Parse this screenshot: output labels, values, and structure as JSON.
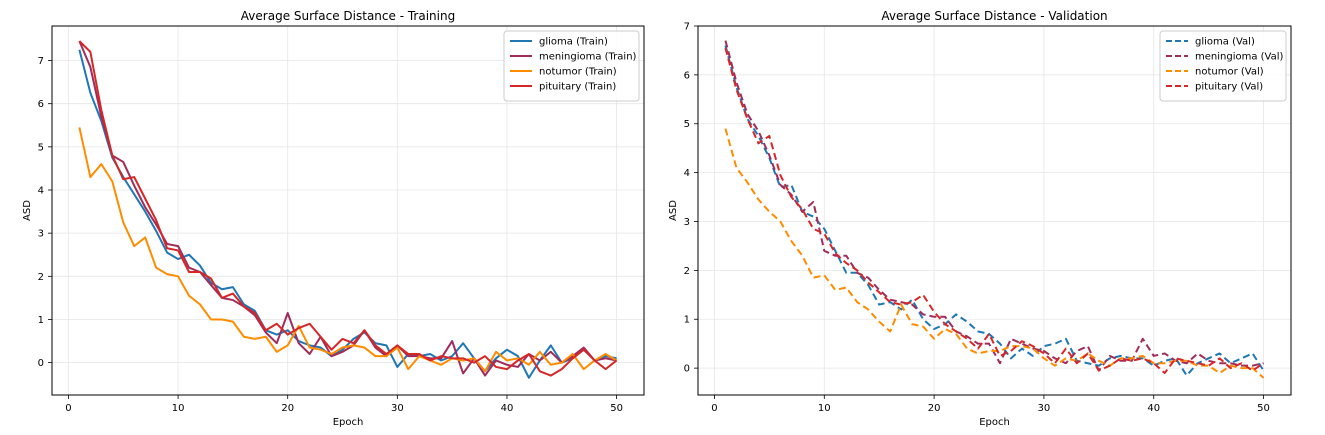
{
  "chart_data": [
    {
      "type": "line",
      "title": "Average Surface Distance - Training",
      "xlabel": "Epoch",
      "ylabel": "ASD",
      "xlim": [
        -1.5,
        52.5
      ],
      "ylim": [
        -0.75,
        7.8
      ],
      "xticks": [
        0,
        10,
        20,
        30,
        40,
        50
      ],
      "yticks": [
        0,
        1,
        2,
        3,
        4,
        5,
        6,
        7
      ],
      "grid": true,
      "legend_position": "top-right",
      "line_style": "solid",
      "x": [
        1,
        2,
        3,
        4,
        5,
        6,
        7,
        8,
        9,
        10,
        11,
        12,
        13,
        14,
        15,
        16,
        17,
        18,
        19,
        20,
        21,
        22,
        23,
        24,
        25,
        26,
        27,
        28,
        29,
        30,
        31,
        32,
        33,
        34,
        35,
        36,
        37,
        38,
        39,
        40,
        41,
        42,
        43,
        44,
        45,
        46,
        47,
        48,
        49,
        50
      ],
      "series": [
        {
          "name": "glioma (Train)",
          "color": "#1f77b4",
          "values": [
            7.25,
            6.25,
            5.6,
            4.75,
            4.3,
            3.9,
            3.5,
            3.05,
            2.55,
            2.4,
            2.5,
            2.25,
            1.85,
            1.7,
            1.75,
            1.35,
            1.2,
            0.75,
            0.65,
            0.75,
            0.5,
            0.4,
            0.35,
            0.15,
            0.3,
            0.55,
            0.7,
            0.45,
            0.4,
            -0.1,
            0.2,
            0.15,
            0.2,
            0.05,
            0.15,
            0.45,
            0.1,
            -0.2,
            0.1,
            0.3,
            0.15,
            -0.35,
            0.05,
            0.4,
            0.0,
            0.1,
            0.3,
            0.05,
            0.15,
            0.1
          ]
        },
        {
          "name": "meningioma (Train)",
          "color": "#a02c5a",
          "values": [
            7.45,
            6.85,
            5.7,
            4.8,
            4.65,
            4.1,
            3.6,
            3.2,
            2.75,
            2.7,
            2.2,
            2.1,
            1.8,
            1.5,
            1.45,
            1.3,
            1.1,
            0.7,
            0.45,
            1.15,
            0.45,
            0.2,
            0.6,
            0.15,
            0.25,
            0.4,
            0.75,
            0.35,
            0.15,
            0.4,
            0.15,
            0.15,
            0.1,
            0.1,
            0.5,
            -0.25,
            0.1,
            -0.3,
            0.05,
            -0.05,
            -0.1,
            0.2,
            0.05,
            0.25,
            0.0,
            0.15,
            0.35,
            0.05,
            0.1,
            0.05
          ]
        },
        {
          "name": "notumor (Train)",
          "color": "#ff8c00",
          "values": [
            5.45,
            4.3,
            4.6,
            4.2,
            3.25,
            2.7,
            2.9,
            2.2,
            2.05,
            2.0,
            1.55,
            1.35,
            1.0,
            1.0,
            0.95,
            0.6,
            0.55,
            0.6,
            0.25,
            0.4,
            0.85,
            0.35,
            0.3,
            0.2,
            0.35,
            0.4,
            0.35,
            0.15,
            0.15,
            0.35,
            -0.15,
            0.15,
            0.05,
            -0.05,
            0.1,
            0.05,
            0.1,
            -0.2,
            0.25,
            0.05,
            0.1,
            -0.05,
            0.25,
            -0.05,
            0.0,
            0.2,
            -0.15,
            0.05,
            0.2,
            0.05
          ]
        },
        {
          "name": "pituitary (Train)",
          "color": "#d62728",
          "values": [
            7.45,
            7.2,
            5.85,
            4.8,
            4.25,
            4.3,
            3.8,
            3.3,
            2.65,
            2.6,
            2.1,
            2.1,
            1.95,
            1.5,
            1.6,
            1.3,
            1.15,
            0.75,
            0.9,
            0.65,
            0.8,
            0.9,
            0.6,
            0.3,
            0.55,
            0.45,
            0.75,
            0.4,
            0.2,
            0.4,
            0.2,
            0.2,
            0.05,
            0.15,
            0.1,
            0.1,
            0.0,
            0.15,
            -0.1,
            -0.15,
            0.05,
            0.2,
            -0.2,
            -0.3,
            -0.15,
            0.1,
            0.3,
            0.05,
            -0.15,
            0.05
          ]
        }
      ]
    },
    {
      "type": "line",
      "title": "Average Surface Distance - Validation",
      "xlabel": "Epoch",
      "ylabel": "ASD",
      "xlim": [
        -1.5,
        52.5
      ],
      "ylim": [
        -0.55,
        7.0
      ],
      "xticks": [
        0,
        10,
        20,
        30,
        40,
        50
      ],
      "yticks": [
        0,
        1,
        2,
        3,
        4,
        5,
        6,
        7
      ],
      "grid": true,
      "legend_position": "top-right",
      "line_style": "dashed",
      "x": [
        1,
        2,
        3,
        4,
        5,
        6,
        7,
        8,
        9,
        10,
        11,
        12,
        13,
        14,
        15,
        16,
        17,
        18,
        19,
        20,
        21,
        22,
        23,
        24,
        25,
        26,
        27,
        28,
        29,
        30,
        31,
        32,
        33,
        34,
        35,
        36,
        37,
        38,
        39,
        40,
        41,
        42,
        43,
        44,
        45,
        46,
        47,
        48,
        49,
        50
      ],
      "series": [
        {
          "name": "glioma (Val)",
          "color": "#1f77b4",
          "values": [
            6.6,
            5.75,
            5.1,
            4.75,
            4.3,
            3.7,
            3.75,
            3.2,
            3.1,
            2.85,
            2.4,
            1.95,
            1.95,
            1.7,
            1.3,
            1.35,
            1.2,
            1.4,
            1.0,
            0.8,
            0.9,
            1.1,
            0.95,
            0.75,
            0.7,
            0.5,
            0.2,
            0.4,
            0.25,
            0.45,
            0.5,
            0.6,
            0.15,
            0.1,
            0.05,
            0.2,
            0.25,
            0.2,
            0.2,
            0.05,
            0.15,
            0.2,
            -0.15,
            0.1,
            0.2,
            0.3,
            0.1,
            0.2,
            0.3,
            -0.05
          ]
        },
        {
          "name": "meningioma (Val)",
          "color": "#a02c5a",
          "values": [
            6.7,
            5.85,
            5.2,
            4.85,
            4.35,
            3.75,
            3.55,
            3.2,
            3.4,
            2.4,
            2.3,
            2.3,
            1.95,
            1.85,
            1.6,
            1.4,
            1.35,
            1.3,
            1.1,
            1.05,
            1.05,
            0.75,
            0.65,
            0.5,
            0.5,
            0.1,
            0.6,
            0.5,
            0.4,
            0.35,
            0.2,
            0.1,
            0.35,
            0.45,
            -0.05,
            0.25,
            0.15,
            0.15,
            0.6,
            0.25,
            0.3,
            0.15,
            0.1,
            0.3,
            0.15,
            0.1,
            0.1,
            0.05,
            0.05,
            0.1
          ]
        },
        {
          "name": "notumor (Val)",
          "color": "#ff8c00",
          "values": [
            4.9,
            4.1,
            3.8,
            3.45,
            3.2,
            3.0,
            2.6,
            2.3,
            1.85,
            1.9,
            1.6,
            1.65,
            1.35,
            1.2,
            0.95,
            0.75,
            1.3,
            0.9,
            0.85,
            0.6,
            0.8,
            0.7,
            0.4,
            0.3,
            0.35,
            0.35,
            0.45,
            0.45,
            0.4,
            0.2,
            0.05,
            0.2,
            0.15,
            0.3,
            0.15,
            0.05,
            0.2,
            0.2,
            0.25,
            0.1,
            0.1,
            0.15,
            0.15,
            0.05,
            0.05,
            -0.1,
            0.05,
            0.0,
            0.0,
            -0.2
          ]
        },
        {
          "name": "pituitary (Val)",
          "color": "#d62728",
          "values": [
            6.55,
            5.7,
            5.1,
            4.6,
            4.75,
            3.95,
            3.5,
            3.25,
            2.85,
            2.75,
            2.35,
            2.15,
            2.0,
            1.75,
            1.55,
            1.35,
            1.3,
            1.35,
            1.5,
            1.15,
            0.9,
            0.75,
            0.6,
            0.4,
            0.7,
            0.25,
            0.35,
            0.55,
            0.45,
            0.3,
            0.1,
            0.4,
            0.1,
            0.3,
            -0.05,
            0.05,
            0.2,
            0.15,
            0.2,
            0.1,
            -0.1,
            0.2,
            0.15,
            0.1,
            0.05,
            0.2,
            0.0,
            0.1,
            -0.05,
            0.1
          ]
        }
      ]
    }
  ]
}
